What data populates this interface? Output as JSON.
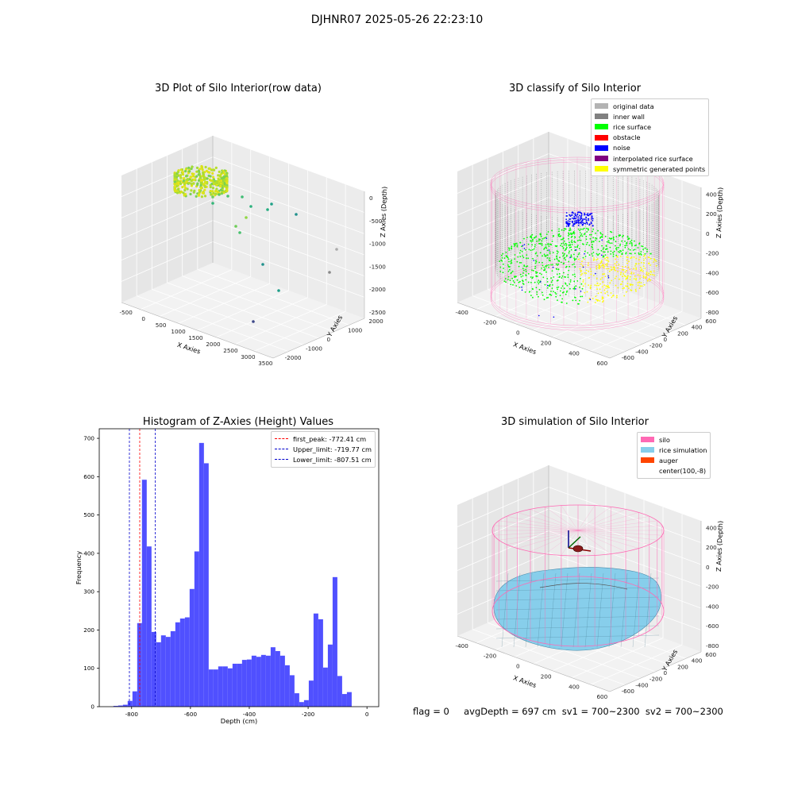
{
  "figure": {
    "suptitle": "DJHNR07 2025-05-26 22:23:10",
    "status_text": "flag = 0     avgDepth = 697 cm  sv1 = 700~2300  sv2 = 700~2300"
  },
  "colors": {
    "histogram_bar": "#4d4dff",
    "first_peak_line": "#ff0000",
    "limit_lines": "#0000cc",
    "silo_wire": "#ff69b4",
    "rice_surface": "#87ceeb",
    "auger": "#ff4500",
    "inner_wall": "#808080",
    "rice_points": "#00ff00",
    "noise_points": "#0000ff",
    "symmetric_points": "#ffff00"
  },
  "chart_data": [
    {
      "type": "scatter",
      "subtype": "3d",
      "title": "3D Plot of Silo Interior(row data)",
      "xlabel": "X Axies",
      "ylabel": "Y Axies",
      "zlabel": "Z Axies (Depth)",
      "x_ticks": [
        "-500",
        "0",
        "500",
        "1000",
        "1500",
        "2000",
        "2500",
        "3000",
        "3500"
      ],
      "y_ticks": [
        "-2000",
        "-1000",
        "0",
        "1000",
        "2000"
      ],
      "z_ticks": [
        "0",
        "-500",
        "-1000",
        "-1500",
        "-2000",
        "-2500"
      ],
      "xlim": [
        -600,
        3500
      ],
      "ylim": [
        -2300,
        2300
      ],
      "zlim": [
        -2900,
        100
      ],
      "colormap": "viridis (by depth)",
      "grid": true
    },
    {
      "type": "scatter",
      "subtype": "3d",
      "title": "3D classify of Silo Interior",
      "xlabel": "X Axies",
      "ylabel": "Y Axies",
      "zlabel": "Z Axies (Depth)",
      "x_ticks": [
        "-400",
        "-200",
        "0",
        "200",
        "400",
        "600"
      ],
      "y_ticks": [
        "-600",
        "-400",
        "-200",
        "0",
        "200",
        "400",
        "600"
      ],
      "z_ticks": [
        "-800",
        "-600",
        "-400",
        "-200",
        "0",
        "200",
        "400"
      ],
      "grid": true,
      "legend_position": "top-right",
      "legend": [
        {
          "label": "original data",
          "color": "#b3b3b3"
        },
        {
          "label": "inner wall",
          "color": "#808080"
        },
        {
          "label": "rice surface",
          "color": "#00ff00"
        },
        {
          "label": "obstacle",
          "color": "#ff0000"
        },
        {
          "label": "noise",
          "color": "#0000ff"
        },
        {
          "label": "interpolated rice surface",
          "color": "#800080"
        },
        {
          "label": "symmetric generated points",
          "color": "#ffff00"
        }
      ]
    },
    {
      "type": "bar",
      "subtype": "histogram",
      "title": "Histogram of Z-Axies (Height) Values",
      "xlabel": "Depth (cm)",
      "ylabel": "Frequency",
      "xlim": [
        -910,
        40
      ],
      "ylim": [
        0,
        725
      ],
      "x_ticks": [
        -800,
        -600,
        -400,
        -200,
        0
      ],
      "y_ticks": [
        0,
        100,
        200,
        300,
        400,
        500,
        600,
        700
      ],
      "bin_width": 16.2,
      "bin_start": -862,
      "values": [
        2,
        3,
        5,
        15,
        40,
        218,
        592,
        418,
        195,
        168,
        186,
        182,
        197,
        220,
        230,
        233,
        307,
        405,
        688,
        635,
        97,
        97,
        105,
        105,
        100,
        112,
        112,
        122,
        123,
        133,
        130,
        135,
        133,
        155,
        145,
        133,
        108,
        82,
        35,
        12,
        17,
        68,
        243,
        228,
        102,
        162,
        338,
        80,
        33,
        38
      ],
      "grid": false,
      "legend_position": "top-right",
      "vlines": [
        {
          "label": "first_peak: -772.41 cm",
          "x": -772.41,
          "color": "#ff0000"
        },
        {
          "label": "Upper_limit: -719.77 cm",
          "x": -719.77,
          "color": "#0000cc"
        },
        {
          "label": "Lower_limit: -807.51 cm",
          "x": -807.51,
          "color": "#0000cc"
        }
      ]
    },
    {
      "type": "area",
      "subtype": "3d-surface",
      "title": "3D simulation of Silo Interior",
      "xlabel": "X Axies",
      "ylabel": "Y Axies",
      "zlabel": "Z Axies (Depth)",
      "x_ticks": [
        "-400",
        "-200",
        "0",
        "200",
        "400",
        "600"
      ],
      "y_ticks": [
        "-600",
        "-400",
        "-200",
        "0",
        "200",
        "400",
        "600"
      ],
      "z_ticks": [
        "-800",
        "-600",
        "-400",
        "-200",
        "0",
        "200",
        "400"
      ],
      "grid": true,
      "legend_position": "top-right",
      "legend": [
        {
          "label": "silo",
          "color": "#ff69b4"
        },
        {
          "label": "rice simulation",
          "color": "#87ceeb"
        },
        {
          "label": "auger",
          "color": "#ff4500"
        },
        {
          "label": "center(100,-8)",
          "color": "#ffffff"
        }
      ]
    }
  ]
}
